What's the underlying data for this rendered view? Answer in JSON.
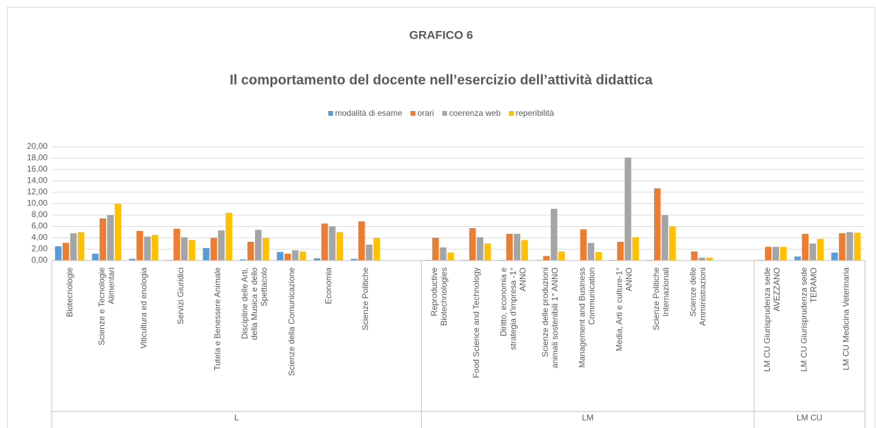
{
  "chart_data": {
    "type": "bar",
    "title": "GRAFICO 6",
    "subtitle": "Il comportamento del docente nell’esercizio dell’attività didattica",
    "groups": [
      {
        "name": "L",
        "categories": [
          "Biotecnologie",
          "Scienze e Tecnologie Alimentari",
          "Viticultura ed enologia",
          "Servizi Giuridici",
          "Tutela e Benessere Animale",
          "Discipline delle Arti, della Musica e dello Spettacolo",
          "Scienze della Comunicazione",
          "Economia",
          "Scienze Politiche",
          null
        ]
      },
      {
        "name": "LM",
        "categories": [
          "Reproductive Biotechnologies",
          "Food Science and Technology",
          "Diritto, economia e strategia d'impresa -1° ANNO",
          "Scienze delle produzioni animali sostenibili 1° ANNO",
          "Management and Business Communication",
          "Media, Arti e culture-1° ANNO",
          "Scienze Politiche Internazionali",
          "Scienze delle Amministrazioni",
          null
        ]
      },
      {
        "name": "LM CU",
        "categories": [
          "LM CU  Giurisprudenza sede AVEZZANO",
          "LM CU Giurisprudenza  sede TERAMO",
          "LM CU Medicina Veterinaria"
        ]
      }
    ],
    "series": [
      {
        "name": "modalità di esame",
        "color": "#5b9bd5",
        "values": [
          2.5,
          1.2,
          0.3,
          0.1,
          2.2,
          0.2,
          1.5,
          0.4,
          0.3,
          null,
          0.1,
          0.1,
          0.1,
          0.1,
          0,
          0.1,
          0.1,
          0,
          null,
          0.1,
          0.7,
          1.4
        ]
      },
      {
        "name": "orari",
        "color": "#ed7d31",
        "values": [
          3.1,
          7.4,
          5.2,
          5.6,
          4.0,
          3.3,
          1.2,
          6.5,
          6.9,
          null,
          4.0,
          5.7,
          4.7,
          0.8,
          5.5,
          3.3,
          12.7,
          1.6,
          null,
          2.4,
          4.7,
          4.8
        ]
      },
      {
        "name": "coerenza web",
        "color": "#a5a5a5",
        "values": [
          4.8,
          8.0,
          4.2,
          4.1,
          5.3,
          5.4,
          1.8,
          6.0,
          2.8,
          null,
          2.3,
          4.1,
          4.7,
          9.1,
          3.1,
          18.1,
          8.0,
          0.5,
          null,
          2.4,
          3.0,
          5.0
        ]
      },
      {
        "name": "reperibilità",
        "color": "#ffc000",
        "values": [
          5.0,
          10.0,
          4.5,
          3.6,
          8.4,
          4.0,
          1.6,
          5.0,
          4.0,
          null,
          1.4,
          3.0,
          3.6,
          1.6,
          1.5,
          4.1,
          6.0,
          0.5,
          null,
          2.4,
          3.8,
          4.9
        ]
      }
    ],
    "ylim": [
      0,
      20
    ],
    "yticks": [
      {
        "value": 0,
        "label": "0,00"
      },
      {
        "value": 2,
        "label": "2,00"
      },
      {
        "value": 4,
        "label": "4,00"
      },
      {
        "value": 6,
        "label": "6,00"
      },
      {
        "value": 8,
        "label": "8,00"
      },
      {
        "value": 10,
        "label": "10,00"
      },
      {
        "value": 12,
        "label": "12,00"
      },
      {
        "value": 14,
        "label": "14,00"
      },
      {
        "value": 16,
        "label": "16,00"
      },
      {
        "value": 18,
        "label": "18,00"
      },
      {
        "value": 20,
        "label": "20,00"
      }
    ],
    "grid": true,
    "legend": "top"
  }
}
